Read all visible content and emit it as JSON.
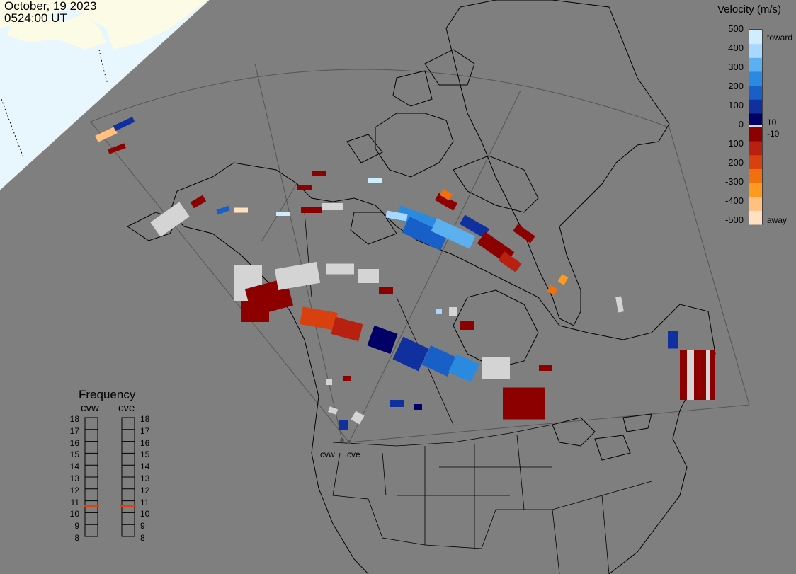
{
  "header": {
    "date": "October, 19 2023",
    "time": "0524:00 UT"
  },
  "velocity_scale": {
    "title": "Velocity (m/s)",
    "ticks": [
      "500",
      "400",
      "300",
      "200",
      "100",
      "0",
      "-100",
      "-200",
      "-300",
      "-400",
      "-500"
    ],
    "small_ticks": [
      "10",
      "-10"
    ],
    "toward_label": "toward",
    "away_label": "away",
    "colors": [
      "#ffe0c0",
      "#ffc080",
      "#ff9a20",
      "#f07010",
      "#d94010",
      "#b82010",
      "#8c0000",
      "#000066",
      "#1030a0",
      "#1860c8",
      "#2a8ae0",
      "#5cb0f0",
      "#a8d8ff",
      "#d0ecff"
    ]
  },
  "frequency_panel": {
    "title": "Frequency",
    "stations": [
      "cvw",
      "cve"
    ],
    "ticks": [
      "18",
      "17",
      "16",
      "15",
      "14",
      "13",
      "12",
      "11",
      "10",
      "9",
      "8"
    ],
    "marker_color": "#e04010"
  },
  "radar_sites": {
    "west": "cvw",
    "east": "cve"
  },
  "colors": {
    "background": "#7f7f7f",
    "sunlit": "#fbfbe6",
    "ocean_day": "#e6f6ff",
    "ground_scatter": "#d4d4d4"
  }
}
